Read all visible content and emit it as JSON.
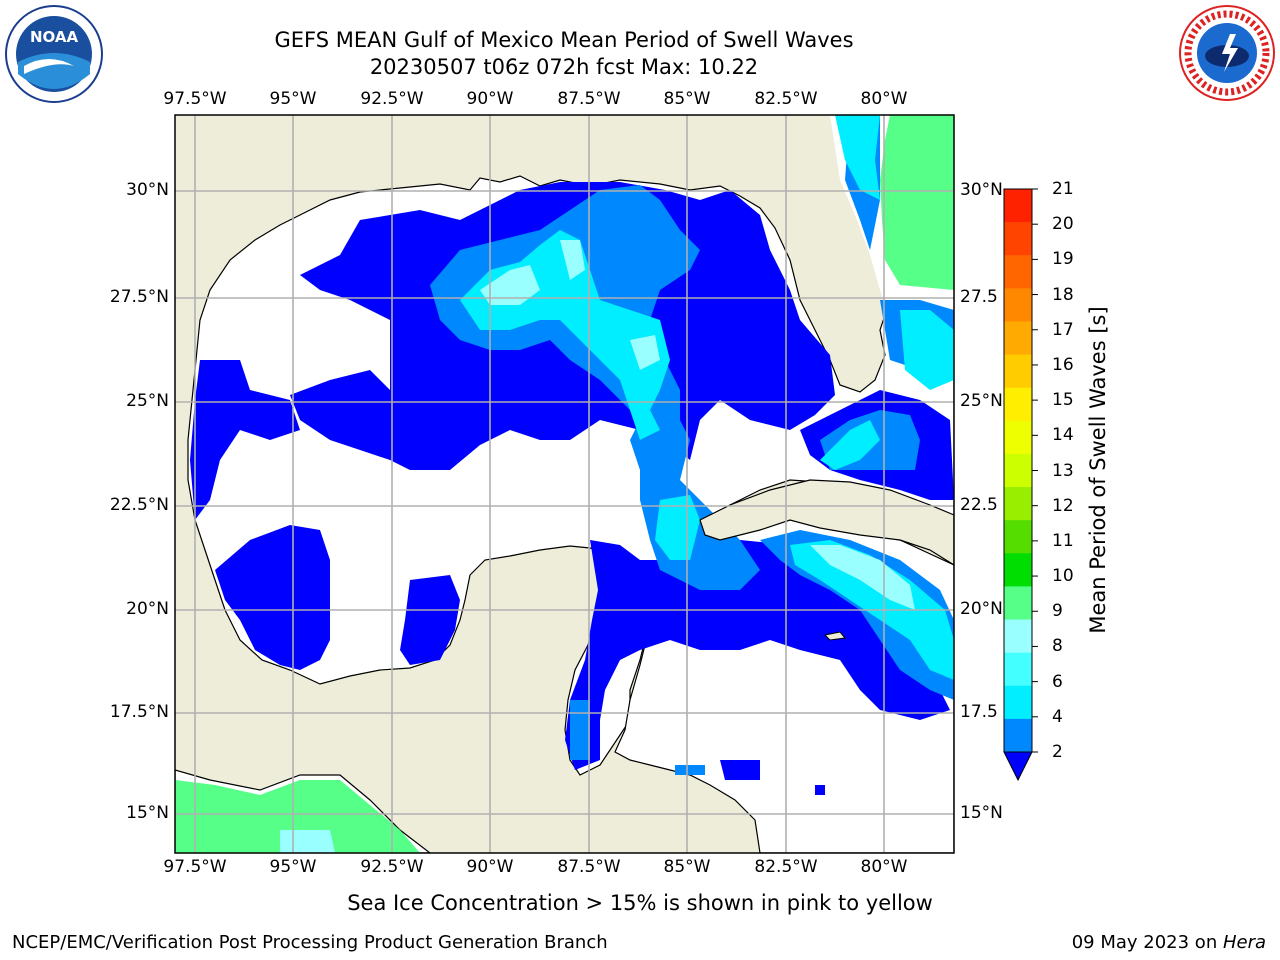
{
  "title_line1": "GEFS MEAN Gulf of Mexico Mean Period of Swell Waves",
  "title_line2": "20230507 t06z 072h fcst   Max: 10.22",
  "lon_labels": [
    "97.5°W",
    "95°W",
    "92.5°W",
    "90°W",
    "87.5°W",
    "85°W",
    "82.5°W",
    "80°W"
  ],
  "lat_labels_left": [
    "30°N",
    "27.5°N",
    "25°N",
    "22.5°N",
    "20°N",
    "17.5°N",
    "15°N"
  ],
  "lat_labels_right": [
    "30°N",
    "27.5",
    "25°N",
    "22.5",
    "20°N",
    "17.5",
    "15°N"
  ],
  "colorbar": {
    "title": "Mean Period of Swell Waves [s]",
    "ticks": [
      "21",
      "20",
      "19",
      "18",
      "17",
      "16",
      "15",
      "14",
      "13",
      "12",
      "11",
      "10",
      "9",
      "8",
      "6",
      "4",
      "2"
    ],
    "colors": [
      "#ff2200",
      "#ff4400",
      "#ff6600",
      "#ff8800",
      "#ffaa00",
      "#ffcc00",
      "#ffee00",
      "#eeff00",
      "#ccff00",
      "#99ee00",
      "#55dd00",
      "#00dd00",
      "#55ff88",
      "#99ffff",
      "#44ffff",
      "#00eeff",
      "#0088ff",
      "#0000ff"
    ]
  },
  "note": "Sea Ice Concentration > 15% is shown in pink to yellow",
  "footer_left": "NCEP/EMC/Verification Post Processing Product Generation Branch",
  "footer_date": "09 May 2023 on ",
  "footer_host": "Hera",
  "logos": {
    "left_text": "NOAA",
    "right_text": "NATIONAL WEATHER SERVICE"
  },
  "colors": {
    "land": "#eeedda",
    "ocean_none": "#ffffff",
    "grid": "#b0b0b0"
  }
}
